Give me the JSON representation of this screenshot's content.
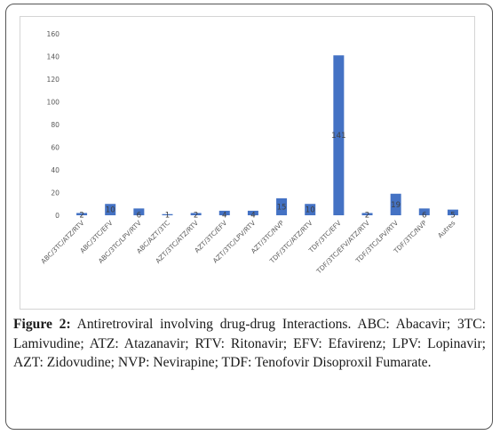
{
  "chart_data": {
    "type": "bar",
    "categories": [
      "ABC/3TC/ATZ/RTV",
      "ABC/3TC/EFV",
      "ABC/3TC/LPV/RTV",
      "ABC/AZT/3TC",
      "AZT/3TC/ATZ/RTV",
      "AZT/3TC/EFV",
      "AZT/3TC/LPV/RTV",
      "AZT/3TC/NVP",
      "TDF/3TC/ATZ/RTV",
      "TDF/3TC/EFV",
      "TDF/3TC/EFV/ATZ/RTV",
      "TDF/3TC/LPV/RTV",
      "TDF/3TC/NVP",
      "Autres"
    ],
    "values": [
      2,
      10,
      6,
      1,
      2,
      4,
      4,
      15,
      10,
      141,
      2,
      19,
      6,
      5
    ],
    "data_labels": [
      "2",
      "10",
      "6",
      "1",
      "2",
      "4",
      "4",
      "15",
      "10",
      "141",
      "2",
      "19",
      "6",
      "5"
    ],
    "ylim": [
      0,
      160
    ],
    "yticks": [
      "0",
      "20",
      "40",
      "60",
      "80",
      "100",
      "120",
      "140",
      "160"
    ],
    "bar_color": "#4472c4",
    "grid": false,
    "legend": "none",
    "title": "",
    "xlabel": "",
    "ylabel": ""
  },
  "caption": {
    "lead": "Figure 2:",
    "text": " Antiretroviral involving drug-drug Interactions. ABC: Abacavir; 3TC: Lamivudine; ATZ: Atazanavir; RTV: Ritonavir; EFV: Efavirenz; LPV: Lopinavir; AZT: Zidovudine; NVP: Nevirapine; TDF: Tenofovir Disoproxil Fumarate."
  }
}
